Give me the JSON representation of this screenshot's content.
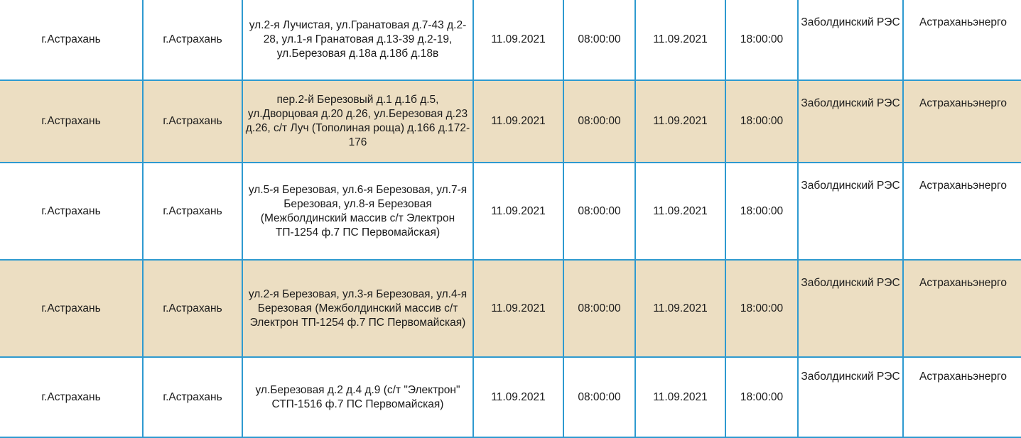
{
  "colors": {
    "border": "#2e9ad0",
    "alt_row": "#ecdec2"
  },
  "rows": [
    {
      "city": "г.Астрахань",
      "district": "г.Астрахань",
      "address": "ул.2-я Лучистая, ул.Гранатовая д.7-43 д.2-28, ул.1-я Гранатовая д.13-39 д.2-19, ул.Березовая д.18а д.18б д.18в",
      "start_date": "11.09.2021",
      "start_time": "08:00:00",
      "end_date": "11.09.2021",
      "end_time": "18:00:00",
      "res": "Заболдинский РЭС",
      "org": "Астраханьэнерго"
    },
    {
      "city": "г.Астрахань",
      "district": "г.Астрахань",
      "address": "пер.2-й Березовый д.1 д.1б д.5, ул.Дворцовая д.20 д.26, ул.Березовая д.23 д.26, с/т Луч (Тополиная роща) д.166 д.172-176",
      "start_date": "11.09.2021",
      "start_time": "08:00:00",
      "end_date": "11.09.2021",
      "end_time": "18:00:00",
      "res": "Заболдинский РЭС",
      "org": "Астраханьэнерго"
    },
    {
      "city": "г.Астрахань",
      "district": "г.Астрахань",
      "address": "ул.5-я Березовая, ул.6-я Березовая, ул.7-я Березовая, ул.8-я Березовая (Межболдинский массив с/т Электрон ТП-1254 ф.7 ПС Первомайская)",
      "start_date": "11.09.2021",
      "start_time": "08:00:00",
      "end_date": "11.09.2021",
      "end_time": "18:00:00",
      "res": "Заболдинский РЭС",
      "org": "Астраханьэнерго"
    },
    {
      "city": "г.Астрахань",
      "district": "г.Астрахань",
      "address": "ул.2-я Березовая, ул.3-я Березовая, ул.4-я Березовая (Межболдинский массив с/т Электрон ТП-1254 ф.7 ПС Первомайская)",
      "start_date": "11.09.2021",
      "start_time": "08:00:00",
      "end_date": "11.09.2021",
      "end_time": "18:00:00",
      "res": "Заболдинский РЭС",
      "org": "Астраханьэнерго"
    },
    {
      "city": "г.Астрахань",
      "district": "г.Астрахань",
      "address": "ул.Березовая д.2 д.4 д.9 (с/т \"Электрон\" СТП-1516 ф.7 ПС Первомайская)",
      "start_date": "11.09.2021",
      "start_time": "08:00:00",
      "end_date": "11.09.2021",
      "end_time": "18:00:00",
      "res": "Заболдинский РЭС",
      "org": "Астраханьэнерго"
    }
  ]
}
